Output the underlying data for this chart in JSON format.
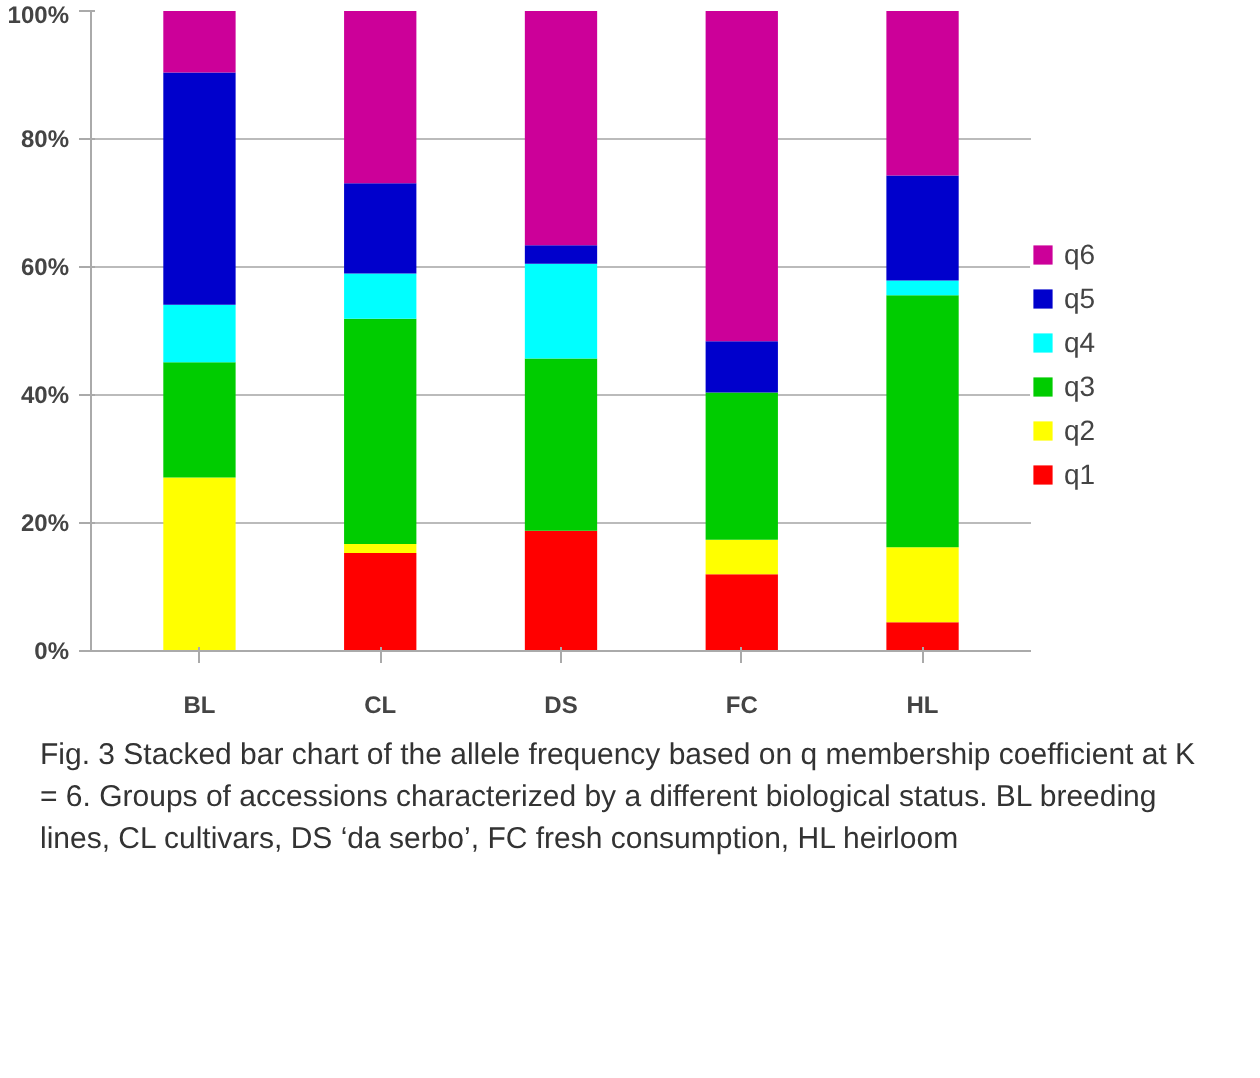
{
  "chart_data": {
    "type": "bar",
    "stacked": true,
    "categories": [
      "BL",
      "CL",
      "DS",
      "FC",
      "HL"
    ],
    "series": [
      {
        "name": "q1",
        "color": "#ff0000",
        "values": [
          0,
          15.3,
          18.8,
          12.0,
          4.5
        ]
      },
      {
        "name": "q2",
        "color": "#ffff00",
        "values": [
          27.1,
          1.4,
          0,
          5.4,
          11.7
        ]
      },
      {
        "name": "q3",
        "color": "#00cc00",
        "values": [
          18.0,
          35.2,
          26.9,
          23.0,
          39.4
        ]
      },
      {
        "name": "q4",
        "color": "#00ffff",
        "values": [
          9.0,
          7.1,
          14.8,
          0,
          2.3
        ]
      },
      {
        "name": "q5",
        "color": "#0000cc",
        "values": [
          36.3,
          14.1,
          2.9,
          8.0,
          16.4
        ]
      },
      {
        "name": "q6",
        "color": "#cc0099",
        "values": [
          9.6,
          26.9,
          36.6,
          51.6,
          25.7
        ]
      }
    ],
    "ylim": [
      0,
      100
    ],
    "yticks": [
      {
        "value": 0,
        "label": "0%"
      },
      {
        "value": 20,
        "label": "20%"
      },
      {
        "value": 40,
        "label": "40%"
      },
      {
        "value": 60,
        "label": "60%"
      },
      {
        "value": 80,
        "label": "80%"
      },
      {
        "value": 100,
        "label": "100%"
      }
    ],
    "grid": "y",
    "legend": "right",
    "annotations": [
      "Fig. 3 Stacked bar chart of the allele frequency based on q membership coefficient at K = 6. Groups of accessions characterized by a different biological status. BL breeding lines, CL cultivars, DS ‘da serbo’, FC fresh consumption, HL heirloom"
    ]
  }
}
